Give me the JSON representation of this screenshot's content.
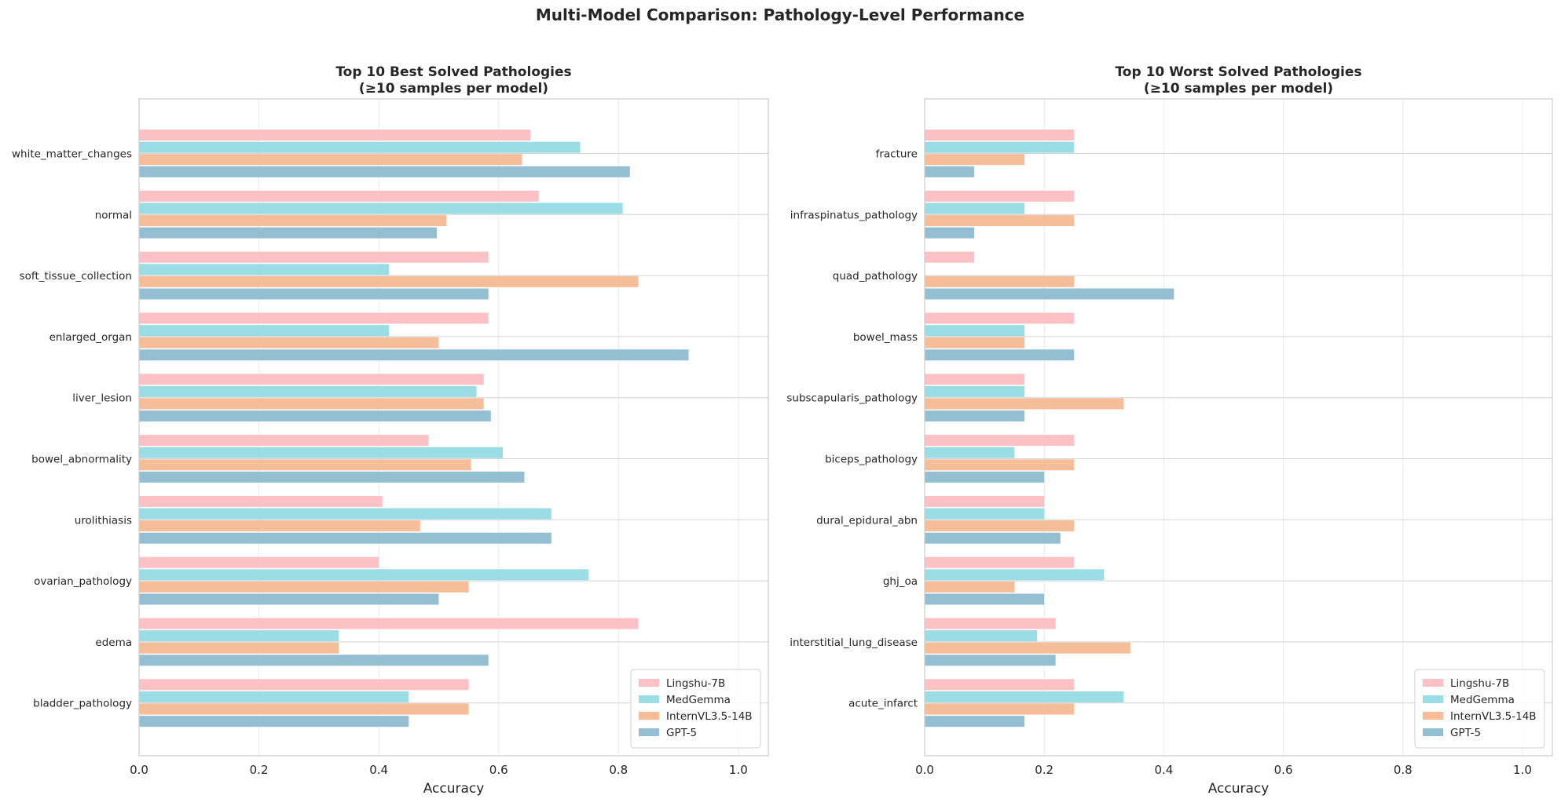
{
  "figure": {
    "title": "Multi-Model Comparison: Pathology-Level Performance"
  },
  "colors": {
    "Lingshu-7B": "#fcc1c4",
    "MedGemma": "#9adde4",
    "InternVL3.5-14B": "#f6bd99",
    "GPT-5": "#94bfd3",
    "grid": "#ebebeb",
    "axis": "#cccccc"
  },
  "chart_data": [
    {
      "type": "bar",
      "orientation": "horizontal",
      "title": "Top 10 Best Solved Pathologies",
      "subtitle": "(≥10 samples per model)",
      "xlabel": "Accuracy",
      "ylabel": "",
      "xlim": [
        0,
        1.05
      ],
      "xticks": [
        0.0,
        0.2,
        0.4,
        0.6,
        0.8,
        1.0
      ],
      "xtick_labels": [
        "0.0",
        "0.2",
        "0.4",
        "0.6",
        "0.8",
        "1.0"
      ],
      "grid": true,
      "legend_position": "lower right",
      "categories": [
        "white_matter_changes",
        "normal",
        "soft_tissue_collection",
        "enlarged_organ",
        "liver_lesion",
        "bowel_abnormality",
        "urolithiasis",
        "ovarian_pathology",
        "edema",
        "bladder_pathology"
      ],
      "series": [
        {
          "name": "Lingshu-7B",
          "values": [
            0.653,
            0.667,
            0.583,
            0.583,
            0.575,
            0.483,
            0.406,
            0.4,
            0.833,
            0.55
          ]
        },
        {
          "name": "MedGemma",
          "values": [
            0.736,
            0.807,
            0.417,
            0.417,
            0.563,
            0.607,
            0.688,
            0.75,
            0.333,
            0.45
          ]
        },
        {
          "name": "InternVL3.5-14B",
          "values": [
            0.639,
            0.513,
            0.833,
            0.5,
            0.575,
            0.554,
            0.469,
            0.55,
            0.333,
            0.55
          ]
        },
        {
          "name": "GPT-5",
          "values": [
            0.819,
            0.497,
            0.583,
            0.917,
            0.587,
            0.643,
            0.688,
            0.5,
            0.583,
            0.45
          ]
        }
      ]
    },
    {
      "type": "bar",
      "orientation": "horizontal",
      "title": "Top 10 Worst Solved Pathologies",
      "subtitle": "(≥10 samples per model)",
      "xlabel": "Accuracy",
      "ylabel": "",
      "xlim": [
        0,
        1.05
      ],
      "xticks": [
        0.0,
        0.2,
        0.4,
        0.6,
        0.8,
        1.0
      ],
      "xtick_labels": [
        "0.0",
        "0.2",
        "0.4",
        "0.6",
        "0.8",
        "1.0"
      ],
      "grid": true,
      "legend_position": "lower right",
      "categories": [
        "fracture",
        "infraspinatus_pathology",
        "quad_pathology",
        "bowel_mass",
        "subscapularis_pathology",
        "biceps_pathology",
        "dural_epidural_abn",
        "ghj_oa",
        "interstitial_lung_disease",
        "acute_infarct"
      ],
      "series": [
        {
          "name": "Lingshu-7B",
          "values": [
            0.25,
            0.25,
            0.083,
            0.25,
            0.167,
            0.25,
            0.2,
            0.25,
            0.219,
            0.25
          ]
        },
        {
          "name": "MedGemma",
          "values": [
            0.25,
            0.167,
            0.0,
            0.167,
            0.167,
            0.15,
            0.2,
            0.3,
            0.188,
            0.333
          ]
        },
        {
          "name": "InternVL3.5-14B",
          "values": [
            0.167,
            0.25,
            0.25,
            0.167,
            0.333,
            0.25,
            0.25,
            0.15,
            0.344,
            0.25
          ]
        },
        {
          "name": "GPT-5",
          "values": [
            0.083,
            0.083,
            0.417,
            0.25,
            0.167,
            0.2,
            0.227,
            0.2,
            0.219,
            0.167
          ]
        }
      ]
    }
  ]
}
